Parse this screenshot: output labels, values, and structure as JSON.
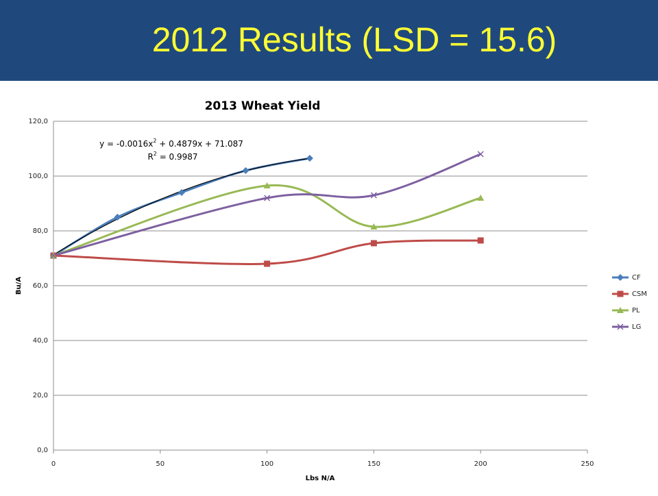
{
  "header": {
    "title": "2012 Results (LSD = 15.6)"
  },
  "chart_data": {
    "type": "line",
    "title": "2013 Wheat Yield",
    "x_label": "Lbs N/A",
    "y_label": "Bu/A",
    "xlim": [
      0,
      250
    ],
    "xticks": [
      0,
      50,
      100,
      150,
      200,
      250
    ],
    "ylim": [
      0,
      120
    ],
    "yticks": [
      {
        "value": 0,
        "label": "0,0"
      },
      {
        "value": 20,
        "label": "20,0"
      },
      {
        "value": 40,
        "label": "40,0"
      },
      {
        "value": 60,
        "label": "60,0"
      },
      {
        "value": 80,
        "label": "80,0"
      },
      {
        "value": 100,
        "label": "100,0"
      },
      {
        "value": 120,
        "label": "120,0"
      }
    ],
    "grid": true,
    "smooth": true,
    "legend": "right",
    "series": [
      {
        "name": "CF",
        "color": "#4a7ebb",
        "marker": "diamond",
        "x": [
          0,
          30,
          60,
          90,
          120
        ],
        "values": [
          71,
          85,
          94,
          102,
          106.5
        ]
      },
      {
        "name": "CSM",
        "color": "#be4b48",
        "marker": "square",
        "x": [
          0,
          100,
          150,
          200
        ],
        "values": [
          71,
          68,
          75.5,
          76.5
        ]
      },
      {
        "name": "PL",
        "color": "#98b954",
        "marker": "triangle",
        "x": [
          0,
          100,
          150,
          200
        ],
        "values": [
          71,
          96.5,
          81.5,
          92
        ]
      },
      {
        "name": "LG",
        "color": "#7d60a0",
        "marker": "x",
        "x": [
          0,
          100,
          150,
          200
        ],
        "values": [
          71,
          92,
          93,
          108
        ]
      }
    ],
    "trendline": {
      "series": 0,
      "color": "#000000",
      "equation": [
        "y = -0.0016x",
        "2",
        " + 0.4879x + 71.087"
      ],
      "r_squared": [
        "R",
        "2",
        " = 0.9987"
      ]
    }
  }
}
